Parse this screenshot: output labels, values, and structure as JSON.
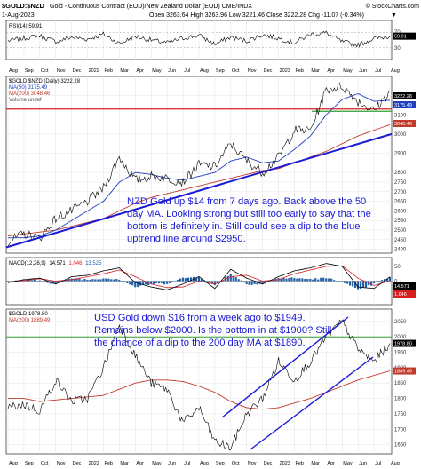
{
  "header": {
    "title": "$GOLD:$NZD",
    "subtitle": "Gold - Continuous Contract (EOD)/New Zealand Dollar (EOD) CME/INDX",
    "watermark": "© StockCharts.com",
    "date": "1-Aug-2023",
    "ohlc": "Open 3263.64  High 3263.96  Low 3221.46  Close 3222.28  Chg -11.07 (-0.34%)",
    "ohlc_change_arrow": "▼"
  },
  "rsi_panel": {
    "legend": "RSI(14) 59.91",
    "levels": [
      "70",
      "30"
    ],
    "last_value": "59.91",
    "accent": "#000000"
  },
  "main_panel": {
    "legend": [
      "$GOLD:$NZD (Daily) 3222.28",
      "MA(50) 3175.49",
      "MA(200) 3048.46",
      "Volume undef"
    ],
    "legend_colors": [
      "#000000",
      "#1f3fbf",
      "#c0392b",
      "#555555"
    ],
    "y_ticks": [
      "3200",
      "3100",
      "3000",
      "2900",
      "2800",
      "2750",
      "2700",
      "2650",
      "2600",
      "2550",
      "2500",
      "2450",
      "2400"
    ],
    "price_badges": [
      "3222.28",
      "3175.49",
      "3048.46"
    ],
    "annotation": [
      "NZD Gold up $14 from 7 days ago. Back above the 50",
      "day MA. Looking strong but still too early to say that the",
      "bottom is definitely in. Still could see a dip to the blue",
      "uptrend line around $2950."
    ]
  },
  "macd_panel": {
    "legend_prefix": "MACD(12,26,9)",
    "macd_value": "14.571",
    "signal_value": "1.046",
    "hist_value": "13.525",
    "y_ticks": [
      "50",
      "0",
      "-50"
    ],
    "badges": [
      "14.571",
      "1.046"
    ]
  },
  "usd_panel": {
    "legend": [
      "$GOLD 1978.80",
      "MA(200) 1889.49"
    ],
    "y_ticks": [
      "2050",
      "2000",
      "1950",
      "1900",
      "1850",
      "1800",
      "1750",
      "1700",
      "1650"
    ],
    "price_badges": [
      "1978.80",
      "1889.49"
    ],
    "annotation": [
      "USD Gold down $16 from a week ago to $1949.",
      "Remains below $2000. Is the bottom in at $1900? Still",
      "the chance of a dip to the 200 day MA at $1890."
    ]
  },
  "x_axis": {
    "labels": [
      "Aug",
      "Sep",
      "Oct",
      "Nov",
      "Dec",
      "2022",
      "Feb",
      "Mar",
      "Apr",
      "May",
      "Jun",
      "Jul",
      "Aug",
      "Sep",
      "Oct",
      "Nov",
      "Dec",
      "2023",
      "Feb",
      "Mar",
      "Apr",
      "May",
      "Jun",
      "Jul",
      "Aug"
    ]
  },
  "colors": {
    "price": "#000000",
    "ma50": "#1f3fbf",
    "ma200": "#c0392b",
    "trendline": "#1a1ad6",
    "support": "#d62020",
    "resistance": "#2e9e2e",
    "annotation": "#1a1ad6",
    "hist": "#1f5fa8"
  },
  "chart_data": [
    {
      "type": "line",
      "name": "RSI(14)",
      "ylim": [
        0,
        100
      ],
      "levels": [
        70,
        30
      ],
      "x": [
        "Aug",
        "Sep",
        "Oct",
        "Nov",
        "Dec",
        "2022",
        "Feb",
        "Mar",
        "Apr",
        "May",
        "Jun",
        "Jul",
        "Aug",
        "Sep",
        "Oct",
        "Nov",
        "Dec",
        "2023",
        "Feb",
        "Mar",
        "Apr",
        "May",
        "Jun",
        "Jul",
        "Aug"
      ],
      "series": [
        {
          "name": "RSI(14)",
          "values": [
            48,
            55,
            62,
            45,
            58,
            52,
            66,
            40,
            60,
            50,
            42,
            55,
            63,
            38,
            58,
            47,
            65,
            55,
            42,
            66,
            70,
            45,
            36,
            54,
            59.91
          ]
        }
      ]
    },
    {
      "type": "line",
      "title": "$GOLD:$NZD (Daily)",
      "ylim": [
        2380,
        3300
      ],
      "x": [
        "Aug",
        "Sep",
        "Oct",
        "Nov",
        "Dec",
        "2022",
        "Feb",
        "Mar",
        "Apr",
        "May",
        "Jun",
        "Jul",
        "Aug",
        "Sep",
        "Oct",
        "Nov",
        "Dec",
        "2023",
        "Feb",
        "Mar",
        "Apr",
        "May",
        "Jun",
        "Jul",
        "Aug"
      ],
      "series": [
        {
          "name": "$GOLD:$NZD",
          "values": [
            2440,
            2480,
            2460,
            2560,
            2600,
            2650,
            2720,
            2880,
            2760,
            2780,
            2770,
            2750,
            2840,
            2830,
            2950,
            2860,
            2800,
            2880,
            3020,
            3020,
            3230,
            3250,
            3170,
            3120,
            3222.28
          ]
        },
        {
          "name": "MA(50)",
          "values": [
            2460,
            2460,
            2470,
            2500,
            2550,
            2600,
            2650,
            2750,
            2800,
            2790,
            2770,
            2760,
            2780,
            2800,
            2860,
            2880,
            2850,
            2860,
            2920,
            2990,
            3100,
            3180,
            3210,
            3170,
            3175.49
          ]
        },
        {
          "name": "MA(200)",
          "values": [
            2470,
            2480,
            2490,
            2500,
            2520,
            2540,
            2560,
            2600,
            2640,
            2670,
            2690,
            2710,
            2730,
            2750,
            2770,
            2790,
            2810,
            2820,
            2850,
            2880,
            2910,
            2950,
            2990,
            3020,
            3048.46
          ]
        }
      ],
      "horizontal_lines": [
        3100,
        3130
      ],
      "trendline": {
        "from": [
          "Aug",
          2410
        ],
        "to": [
          "Aug",
          3000
        ]
      }
    },
    {
      "type": "line",
      "title": "MACD(12,26,9)",
      "ylim": [
        -80,
        80
      ],
      "x": [
        "Aug",
        "Sep",
        "Oct",
        "Nov",
        "Dec",
        "2022",
        "Feb",
        "Mar",
        "Apr",
        "May",
        "Jun",
        "Jul",
        "Aug",
        "Sep",
        "Oct",
        "Nov",
        "Dec",
        "2023",
        "Feb",
        "Mar",
        "Apr",
        "May",
        "Jun",
        "Jul",
        "Aug"
      ],
      "series": [
        {
          "name": "MACD",
          "values": [
            -5,
            5,
            10,
            -10,
            15,
            20,
            35,
            45,
            -5,
            -20,
            -30,
            -10,
            15,
            -25,
            40,
            10,
            -10,
            15,
            35,
            45,
            60,
            50,
            -20,
            -25,
            14.571
          ]
        },
        {
          "name": "Signal",
          "values": [
            -3,
            2,
            8,
            0,
            5,
            15,
            25,
            38,
            15,
            -10,
            -22,
            -20,
            0,
            -10,
            15,
            20,
            0,
            5,
            25,
            38,
            50,
            52,
            10,
            -15,
            1.046
          ]
        },
        {
          "name": "Histogram",
          "values": [
            -2,
            3,
            2,
            -10,
            10,
            5,
            10,
            7,
            -20,
            -10,
            -8,
            10,
            15,
            -15,
            25,
            -10,
            -10,
            10,
            10,
            7,
            10,
            -2,
            -30,
            -10,
            13.525
          ]
        }
      ]
    },
    {
      "type": "line",
      "title": "$GOLD",
      "ylim": [
        1620,
        2090
      ],
      "x": [
        "Aug",
        "Sep",
        "Oct",
        "Nov",
        "Dec",
        "2022",
        "Feb",
        "Mar",
        "Apr",
        "May",
        "Jun",
        "Jul",
        "Aug",
        "Sep",
        "Oct",
        "Nov",
        "Dec",
        "2023",
        "Feb",
        "Mar",
        "Apr",
        "May",
        "Jun",
        "Jul",
        "Aug"
      ],
      "series": [
        {
          "name": "$GOLD",
          "values": [
            1770,
            1780,
            1760,
            1860,
            1790,
            1800,
            1900,
            2040,
            1940,
            1850,
            1830,
            1720,
            1770,
            1660,
            1640,
            1750,
            1800,
            1920,
            1860,
            1920,
            2000,
            2050,
            1960,
            1920,
            1978.8
          ]
        },
        {
          "name": "MA(200)",
          "values": [
            1800,
            1800,
            1790,
            1795,
            1800,
            1805,
            1810,
            1830,
            1850,
            1860,
            1860,
            1855,
            1840,
            1820,
            1790,
            1770,
            1765,
            1770,
            1785,
            1800,
            1820,
            1840,
            1860,
            1875,
            1889.49
          ]
        }
      ],
      "horizontal_lines": [
        2000
      ]
    }
  ]
}
